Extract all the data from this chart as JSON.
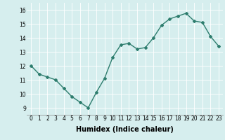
{
  "x": [
    0,
    1,
    2,
    3,
    4,
    5,
    6,
    7,
    8,
    9,
    10,
    11,
    12,
    13,
    14,
    15,
    16,
    17,
    18,
    19,
    20,
    21,
    22,
    23
  ],
  "y": [
    12.0,
    11.4,
    11.2,
    11.0,
    10.4,
    9.8,
    9.4,
    9.0,
    10.1,
    11.1,
    12.6,
    13.5,
    13.6,
    13.2,
    13.3,
    14.0,
    14.9,
    15.35,
    15.55,
    15.75,
    15.2,
    15.1,
    14.1,
    13.4
  ],
  "line_color": "#2e7d6e",
  "marker": "D",
  "marker_size": 2.0,
  "bg_color": "#d6eeee",
  "grid_color": "#ffffff",
  "xlabel": "Humidex (Indice chaleur)",
  "xlabel_fontsize": 7,
  "xlim": [
    -0.5,
    23.5
  ],
  "ylim": [
    8.5,
    16.5
  ],
  "yticks": [
    9,
    10,
    11,
    12,
    13,
    14,
    15,
    16
  ],
  "xticks": [
    0,
    1,
    2,
    3,
    4,
    5,
    6,
    7,
    8,
    9,
    10,
    11,
    12,
    13,
    14,
    15,
    16,
    17,
    18,
    19,
    20,
    21,
    22,
    23
  ],
  "tick_fontsize": 5.5,
  "linewidth": 1.0
}
